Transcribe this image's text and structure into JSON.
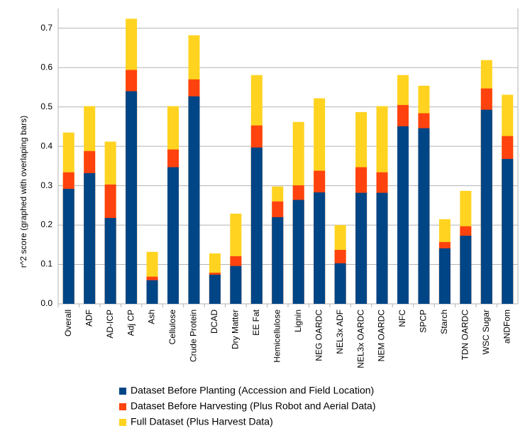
{
  "chart_data": {
    "type": "bar",
    "overlapping": true,
    "y_label": "r^2 score (graphed with overlaping bars)",
    "categories": [
      "Overall",
      "ADF",
      "AD-ICP",
      "Adj CP",
      "Ash",
      "Cellulose",
      "Crude Protein",
      "DCAD",
      "Dry Matter",
      "EE Fat",
      "Hemicellulose",
      "Lignin",
      "NEG OARDC",
      "NEL3x ADF",
      "NEL3x OARDC",
      "NEM OARDC",
      "NFC",
      "SPCP",
      "Starch",
      "TDN OARDC",
      "WSC Sugar",
      "aNDFom"
    ],
    "series": [
      {
        "name": "Dataset Before Planting (Accession and Field Location)",
        "color": "#004586",
        "values": [
          0.292,
          0.332,
          0.218,
          0.54,
          0.06,
          0.347,
          0.527,
          0.074,
          0.096,
          0.397,
          0.22,
          0.264,
          0.283,
          0.103,
          0.282,
          0.282,
          0.451,
          0.446,
          0.141,
          0.173,
          0.493,
          0.368
        ]
      },
      {
        "name": "Dataset Before Harvesting (Plus Robot and Aerial Data)",
        "color": "#ff420e",
        "values": [
          0.334,
          0.388,
          0.303,
          0.594,
          0.069,
          0.392,
          0.57,
          0.079,
          0.121,
          0.453,
          0.26,
          0.301,
          0.338,
          0.137,
          0.347,
          0.334,
          0.505,
          0.484,
          0.157,
          0.197,
          0.547,
          0.426
        ]
      },
      {
        "name": "Full Dataset (Plus Harvest Data)",
        "color": "#ffd320",
        "values": [
          0.435,
          0.502,
          0.412,
          0.724,
          0.132,
          0.502,
          0.682,
          0.128,
          0.229,
          0.581,
          0.298,
          0.462,
          0.522,
          0.2,
          0.487,
          0.502,
          0.581,
          0.554,
          0.215,
          0.287,
          0.619,
          0.531
        ]
      }
    ],
    "ylim": [
      0,
      0.75
    ],
    "yticks": [
      {
        "value": 0,
        "label": "0.0"
      },
      0.1,
      0.2,
      0.3,
      0.4,
      0.5,
      0.6,
      0.7
    ],
    "grid": true,
    "legend": "bottom"
  }
}
